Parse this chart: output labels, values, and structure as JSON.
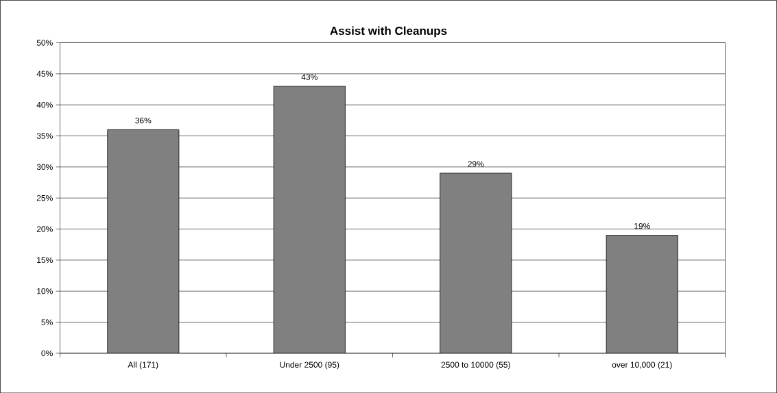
{
  "chart_data": {
    "type": "bar",
    "title": "Assist with Cleanups",
    "categories": [
      "All (171)",
      "Under 2500 (95)",
      "2500 to 10000 (55)",
      "over 10,000 (21)"
    ],
    "values": [
      36,
      43,
      29,
      19
    ],
    "value_labels": [
      "36%",
      "43%",
      "29%",
      "19%"
    ],
    "color": "#808080",
    "ylim": [
      0,
      50
    ],
    "yticks": [
      {
        "value": 0,
        "label": "0%"
      },
      {
        "value": 5,
        "label": "5%"
      },
      {
        "value": 10,
        "label": "10%"
      },
      {
        "value": 15,
        "label": "15%"
      },
      {
        "value": 20,
        "label": "20%"
      },
      {
        "value": 25,
        "label": "25%"
      },
      {
        "value": 30,
        "label": "30%"
      },
      {
        "value": 35,
        "label": "35%"
      },
      {
        "value": 40,
        "label": "40%"
      },
      {
        "value": 45,
        "label": "45%"
      },
      {
        "value": 50,
        "label": "50%"
      }
    ],
    "grid": "y"
  }
}
